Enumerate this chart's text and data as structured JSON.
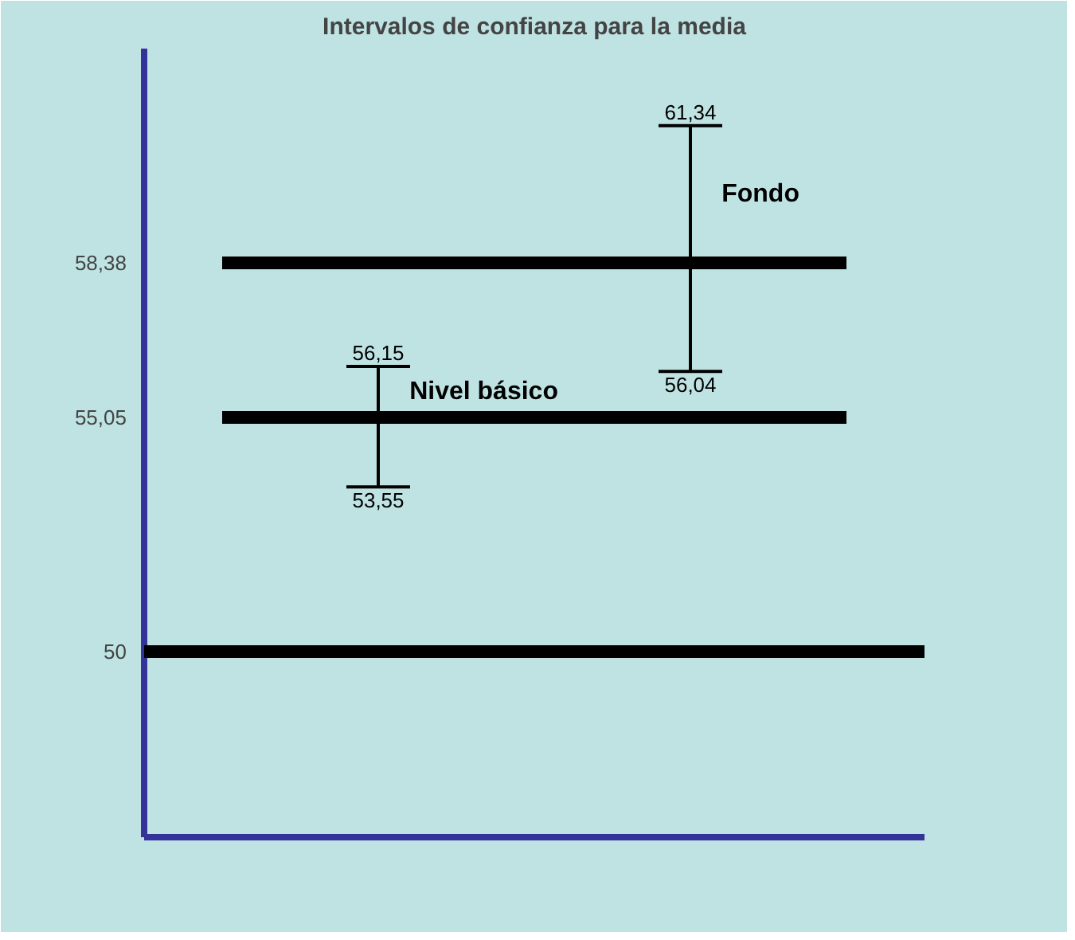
{
  "chart_data": {
    "type": "line",
    "title": "Intervalos de confianza para la media",
    "categories": [
      null,
      null,
      null,
      null,
      null
    ],
    "series": [
      {
        "name": "Nivel básico",
        "color": "#000000",
        "values": [
          55.05,
          55.05,
          55.05,
          55.05,
          55.05
        ],
        "errors": [
          null,
          [
            53.55,
            56.15
          ],
          null,
          null,
          null
        ]
      },
      {
        "name": "Fondo",
        "color": "#000000",
        "values": [
          58.38,
          58.38,
          58.38,
          58.38,
          58.38
        ],
        "errors": [
          null,
          null,
          null,
          [
            56.04,
            61.34
          ],
          null
        ]
      }
    ],
    "ylim": [
      46,
      63
    ],
    "yticks": [
      50,
      {
        "value": 55.05,
        "label": "55,05"
      },
      {
        "value": 58.38,
        "label": "58,38"
      }
    ],
    "ref_lines": [
      {
        "axis": "y",
        "value": 50,
        "color": "#000000"
      }
    ],
    "annotations": [
      "56,15",
      "53,55",
      "61,34",
      "56,04"
    ],
    "grid": false
  }
}
